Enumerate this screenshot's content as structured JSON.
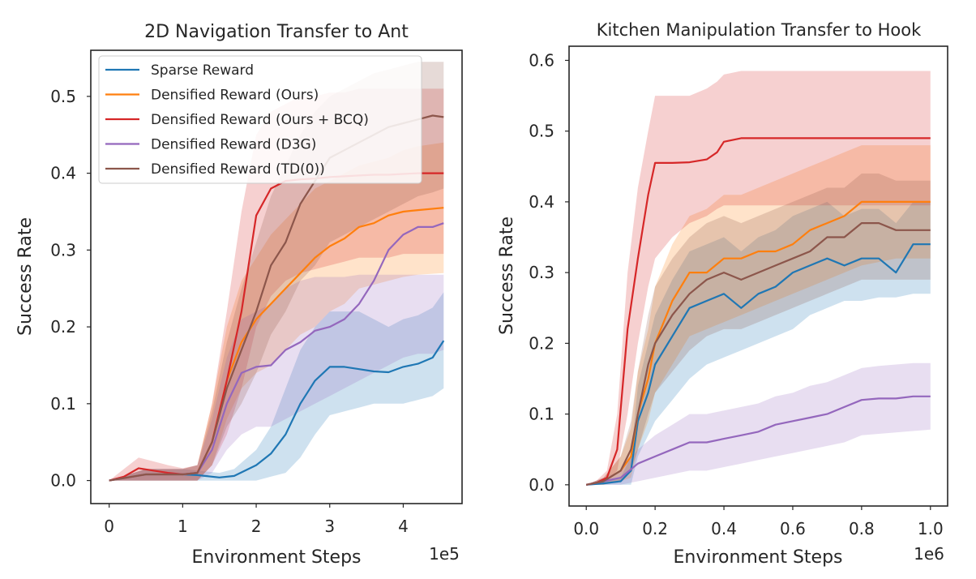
{
  "colors": {
    "Sparse Reward": "#1f77b4",
    "Densified Reward (Ours)": "#ff7f0e",
    "Densified Reward (Ours + BCQ)": "#d62728",
    "Densified Reward (D3G)": "#9467bd",
    "Densified Reward (TD(0))": "#8c564b"
  },
  "legend": {
    "placement": "upper-left of left panel",
    "entries": [
      "Sparse Reward",
      "Densified Reward (Ours)",
      "Densified Reward (Ours + BCQ)",
      "Densified Reward (D3G)",
      "Densified Reward (TD(0))"
    ]
  },
  "chart_data": [
    {
      "type": "line",
      "title": "2D Navigation Transfer to Ant",
      "xlabel": "Environment Steps",
      "ylabel": "Success Rate",
      "x_offset_label": "1e5",
      "xlim": [
        -0.25,
        4.8
      ],
      "ylim": [
        -0.03,
        0.56
      ],
      "xticks": [
        0,
        1,
        2,
        3,
        4
      ],
      "xtick_labels": [
        "0",
        "1",
        "2",
        "3",
        "4"
      ],
      "yticks": [
        0.0,
        0.1,
        0.2,
        0.3,
        0.4,
        0.5
      ],
      "ytick_labels": [
        "0.0",
        "0.1",
        "0.2",
        "0.3",
        "0.4",
        "0.5"
      ],
      "grid": false,
      "shaded_band": "variability band around each series",
      "series": [
        {
          "name": "Sparse Reward",
          "x": [
            0,
            0.5,
            1.0,
            1.2,
            1.5,
            1.7,
            2.0,
            2.2,
            2.4,
            2.6,
            2.8,
            3.0,
            3.2,
            3.4,
            3.6,
            3.8,
            4.0,
            4.2,
            4.4,
            4.55
          ],
          "y": [
            0.0,
            0.008,
            0.008,
            0.007,
            0.004,
            0.006,
            0.02,
            0.035,
            0.06,
            0.1,
            0.13,
            0.148,
            0.148,
            0.145,
            0.142,
            0.141,
            0.148,
            0.152,
            0.16,
            0.182
          ],
          "lower": [
            0.0,
            0.0,
            0.0,
            0.0,
            0.0,
            0.0,
            0.0,
            0.005,
            0.01,
            0.03,
            0.06,
            0.085,
            0.09,
            0.095,
            0.1,
            0.1,
            0.1,
            0.105,
            0.11,
            0.12
          ],
          "upper": [
            0.0,
            0.015,
            0.015,
            0.013,
            0.01,
            0.015,
            0.04,
            0.07,
            0.12,
            0.17,
            0.2,
            0.22,
            0.22,
            0.22,
            0.21,
            0.2,
            0.21,
            0.215,
            0.225,
            0.245
          ]
        },
        {
          "name": "Densified Reward (Ours)",
          "x": [
            0,
            0.5,
            1.0,
            1.2,
            1.4,
            1.6,
            1.8,
            2.0,
            2.2,
            2.4,
            2.6,
            2.8,
            3.0,
            3.2,
            3.4,
            3.6,
            3.8,
            4.0,
            4.2,
            4.55
          ],
          "y": [
            0.0,
            0.008,
            0.008,
            0.01,
            0.05,
            0.13,
            0.18,
            0.21,
            0.23,
            0.25,
            0.27,
            0.29,
            0.305,
            0.315,
            0.33,
            0.335,
            0.345,
            0.35,
            0.352,
            0.355
          ],
          "lower": [
            0.0,
            0.0,
            0.0,
            0.0,
            0.02,
            0.08,
            0.12,
            0.14,
            0.15,
            0.17,
            0.19,
            0.2,
            0.22,
            0.23,
            0.25,
            0.255,
            0.26,
            0.265,
            0.268,
            0.27
          ],
          "upper": [
            0.0,
            0.015,
            0.015,
            0.02,
            0.1,
            0.2,
            0.26,
            0.29,
            0.32,
            0.34,
            0.36,
            0.38,
            0.39,
            0.4,
            0.41,
            0.415,
            0.42,
            0.43,
            0.435,
            0.44
          ]
        },
        {
          "name": "Densified Reward (Ours + BCQ)",
          "x": [
            0,
            0.2,
            0.4,
            0.6,
            0.8,
            1.0,
            1.2,
            1.4,
            1.6,
            1.8,
            2.0,
            2.2,
            2.4,
            2.6,
            2.8,
            3.0,
            3.2,
            3.4,
            3.6,
            3.8,
            4.0,
            4.2,
            4.55
          ],
          "y": [
            0.0,
            0.005,
            0.016,
            0.013,
            0.01,
            0.008,
            0.01,
            0.05,
            0.13,
            0.22,
            0.345,
            0.38,
            0.39,
            0.392,
            0.393,
            0.395,
            0.396,
            0.397,
            0.398,
            0.398,
            0.399,
            0.4,
            0.4
          ],
          "lower": [
            0.0,
            0.0,
            0.0,
            0.0,
            0.0,
            0.0,
            0.0,
            0.02,
            0.06,
            0.12,
            0.2,
            0.24,
            0.26,
            0.27,
            0.275,
            0.28,
            0.285,
            0.29,
            0.29,
            0.29,
            0.295,
            0.295,
            0.295
          ],
          "upper": [
            0.0,
            0.015,
            0.03,
            0.025,
            0.02,
            0.016,
            0.02,
            0.1,
            0.22,
            0.35,
            0.45,
            0.48,
            0.49,
            0.5,
            0.5,
            0.505,
            0.505,
            0.51,
            0.51,
            0.51,
            0.51,
            0.51,
            0.51
          ]
        },
        {
          "name": "Densified Reward (D3G)",
          "x": [
            0,
            0.5,
            1.0,
            1.2,
            1.4,
            1.6,
            1.8,
            2.0,
            2.2,
            2.4,
            2.6,
            2.8,
            3.0,
            3.2,
            3.4,
            3.6,
            3.8,
            4.0,
            4.2,
            4.4,
            4.55
          ],
          "y": [
            0.0,
            0.008,
            0.008,
            0.01,
            0.04,
            0.1,
            0.14,
            0.148,
            0.15,
            0.17,
            0.18,
            0.195,
            0.2,
            0.21,
            0.23,
            0.26,
            0.3,
            0.32,
            0.33,
            0.33,
            0.335
          ],
          "lower": [
            0.0,
            0.0,
            0.0,
            0.0,
            0.01,
            0.04,
            0.06,
            0.07,
            0.07,
            0.08,
            0.09,
            0.1,
            0.11,
            0.12,
            0.13,
            0.14,
            0.15,
            0.16,
            0.165,
            0.165,
            0.17
          ],
          "upper": [
            0.0,
            0.015,
            0.015,
            0.02,
            0.08,
            0.16,
            0.21,
            0.22,
            0.23,
            0.25,
            0.26,
            0.265,
            0.265,
            0.265,
            0.268,
            0.268,
            0.268,
            0.268,
            0.268,
            0.268,
            0.268
          ]
        },
        {
          "name": "Densified Reward (TD(0))",
          "x": [
            0,
            0.5,
            1.0,
            1.2,
            1.4,
            1.6,
            1.8,
            2.0,
            2.2,
            2.4,
            2.6,
            2.8,
            3.0,
            3.2,
            3.4,
            3.6,
            3.8,
            4.0,
            4.2,
            4.4,
            4.55
          ],
          "y": [
            0.0,
            0.008,
            0.008,
            0.01,
            0.05,
            0.12,
            0.17,
            0.22,
            0.28,
            0.31,
            0.36,
            0.39,
            0.42,
            0.43,
            0.44,
            0.45,
            0.46,
            0.465,
            0.47,
            0.475,
            0.473
          ],
          "lower": [
            0.0,
            0.0,
            0.0,
            0.0,
            0.02,
            0.07,
            0.1,
            0.14,
            0.19,
            0.22,
            0.26,
            0.28,
            0.31,
            0.32,
            0.33,
            0.34,
            0.35,
            0.36,
            0.37,
            0.375,
            0.38
          ],
          "upper": [
            0.0,
            0.015,
            0.015,
            0.02,
            0.09,
            0.18,
            0.25,
            0.31,
            0.37,
            0.41,
            0.45,
            0.48,
            0.5,
            0.51,
            0.52,
            0.53,
            0.535,
            0.54,
            0.545,
            0.545,
            0.545
          ]
        }
      ]
    },
    {
      "type": "line",
      "title": "Kitchen Manipulation Transfer to Hook",
      "xlabel": "Environment Steps",
      "ylabel": "Success Rate",
      "x_offset_label": "1e6",
      "xlim": [
        -0.05,
        1.05
      ],
      "ylim": [
        -0.03,
        0.62
      ],
      "xticks": [
        0.0,
        0.2,
        0.4,
        0.6,
        0.8,
        1.0
      ],
      "xtick_labels": [
        "0.0",
        "0.2",
        "0.4",
        "0.6",
        "0.8",
        "1.0"
      ],
      "yticks": [
        0.0,
        0.1,
        0.2,
        0.3,
        0.4,
        0.5,
        0.6
      ],
      "ytick_labels": [
        "0.0",
        "0.1",
        "0.2",
        "0.3",
        "0.4",
        "0.5",
        "0.6"
      ],
      "grid": false,
      "series": [
        {
          "name": "Sparse Reward",
          "x": [
            0,
            0.05,
            0.1,
            0.13,
            0.15,
            0.18,
            0.2,
            0.25,
            0.3,
            0.35,
            0.4,
            0.45,
            0.5,
            0.55,
            0.6,
            0.65,
            0.7,
            0.75,
            0.8,
            0.85,
            0.9,
            0.95,
            1.0
          ],
          "y": [
            0.0,
            0.002,
            0.005,
            0.02,
            0.09,
            0.13,
            0.17,
            0.21,
            0.25,
            0.26,
            0.27,
            0.25,
            0.27,
            0.28,
            0.3,
            0.31,
            0.32,
            0.31,
            0.32,
            0.32,
            0.3,
            0.34,
            0.34
          ],
          "lower": [
            0.0,
            0.0,
            0.0,
            0.0,
            0.04,
            0.07,
            0.09,
            0.12,
            0.15,
            0.17,
            0.18,
            0.19,
            0.2,
            0.21,
            0.22,
            0.24,
            0.25,
            0.26,
            0.26,
            0.265,
            0.265,
            0.27,
            0.27
          ],
          "upper": [
            0.0,
            0.005,
            0.01,
            0.04,
            0.14,
            0.2,
            0.24,
            0.29,
            0.33,
            0.34,
            0.35,
            0.33,
            0.35,
            0.36,
            0.38,
            0.39,
            0.4,
            0.38,
            0.39,
            0.39,
            0.37,
            0.4,
            0.4
          ]
        },
        {
          "name": "Densified Reward (Ours)",
          "x": [
            0,
            0.05,
            0.1,
            0.13,
            0.15,
            0.18,
            0.2,
            0.25,
            0.3,
            0.35,
            0.4,
            0.45,
            0.5,
            0.55,
            0.6,
            0.65,
            0.7,
            0.75,
            0.8,
            0.85,
            0.9,
            0.95,
            1.0
          ],
          "y": [
            0.0,
            0.005,
            0.02,
            0.04,
            0.1,
            0.15,
            0.2,
            0.26,
            0.3,
            0.3,
            0.32,
            0.32,
            0.33,
            0.33,
            0.34,
            0.36,
            0.37,
            0.38,
            0.4,
            0.4,
            0.4,
            0.4,
            0.4
          ],
          "lower": [
            0.0,
            0.0,
            0.005,
            0.01,
            0.05,
            0.09,
            0.13,
            0.17,
            0.21,
            0.22,
            0.23,
            0.24,
            0.25,
            0.26,
            0.27,
            0.28,
            0.29,
            0.3,
            0.31,
            0.315,
            0.32,
            0.32,
            0.32
          ],
          "upper": [
            0.0,
            0.01,
            0.04,
            0.08,
            0.16,
            0.22,
            0.28,
            0.34,
            0.38,
            0.39,
            0.41,
            0.41,
            0.42,
            0.43,
            0.44,
            0.45,
            0.46,
            0.47,
            0.48,
            0.48,
            0.48,
            0.48,
            0.48
          ]
        },
        {
          "name": "Densified Reward (Ours + BCQ)",
          "x": [
            0,
            0.03,
            0.06,
            0.09,
            0.12,
            0.15,
            0.18,
            0.2,
            0.25,
            0.3,
            0.35,
            0.38,
            0.4,
            0.45,
            0.5,
            0.6,
            0.7,
            0.8,
            0.9,
            1.0
          ],
          "y": [
            0.0,
            0.003,
            0.01,
            0.05,
            0.22,
            0.32,
            0.41,
            0.455,
            0.455,
            0.456,
            0.46,
            0.47,
            0.485,
            0.49,
            0.49,
            0.49,
            0.49,
            0.49,
            0.49,
            0.49
          ],
          "lower": [
            0.0,
            0.0,
            0.005,
            0.02,
            0.1,
            0.2,
            0.28,
            0.32,
            0.35,
            0.37,
            0.38,
            0.39,
            0.395,
            0.395,
            0.395,
            0.395,
            0.395,
            0.395,
            0.395,
            0.395
          ],
          "upper": [
            0.0,
            0.006,
            0.02,
            0.1,
            0.3,
            0.42,
            0.5,
            0.55,
            0.55,
            0.55,
            0.56,
            0.57,
            0.58,
            0.585,
            0.585,
            0.585,
            0.585,
            0.585,
            0.585,
            0.585
          ]
        },
        {
          "name": "Densified Reward (D3G)",
          "x": [
            0,
            0.05,
            0.1,
            0.15,
            0.2,
            0.25,
            0.3,
            0.35,
            0.4,
            0.45,
            0.5,
            0.55,
            0.6,
            0.65,
            0.7,
            0.75,
            0.8,
            0.85,
            0.9,
            0.95,
            1.0
          ],
          "y": [
            0.0,
            0.005,
            0.01,
            0.03,
            0.04,
            0.05,
            0.06,
            0.06,
            0.065,
            0.07,
            0.075,
            0.085,
            0.09,
            0.095,
            0.1,
            0.11,
            0.12,
            0.122,
            0.122,
            0.125,
            0.125
          ],
          "lower": [
            0.0,
            0.0,
            0.0,
            0.005,
            0.01,
            0.015,
            0.02,
            0.02,
            0.025,
            0.03,
            0.035,
            0.04,
            0.045,
            0.05,
            0.055,
            0.06,
            0.07,
            0.072,
            0.074,
            0.076,
            0.078
          ],
          "upper": [
            0.0,
            0.01,
            0.02,
            0.05,
            0.07,
            0.085,
            0.1,
            0.1,
            0.105,
            0.11,
            0.115,
            0.125,
            0.13,
            0.14,
            0.145,
            0.155,
            0.165,
            0.168,
            0.17,
            0.172,
            0.172
          ]
        },
        {
          "name": "Densified Reward (TD(0))",
          "x": [
            0,
            0.05,
            0.1,
            0.13,
            0.15,
            0.18,
            0.2,
            0.25,
            0.3,
            0.35,
            0.4,
            0.45,
            0.5,
            0.55,
            0.6,
            0.65,
            0.7,
            0.75,
            0.8,
            0.85,
            0.9,
            0.95,
            1.0
          ],
          "y": [
            0.0,
            0.005,
            0.02,
            0.05,
            0.1,
            0.17,
            0.2,
            0.24,
            0.27,
            0.29,
            0.3,
            0.29,
            0.3,
            0.31,
            0.32,
            0.33,
            0.35,
            0.35,
            0.37,
            0.37,
            0.36,
            0.36,
            0.36
          ],
          "lower": [
            0.0,
            0.0,
            0.005,
            0.02,
            0.05,
            0.1,
            0.13,
            0.16,
            0.19,
            0.21,
            0.22,
            0.22,
            0.23,
            0.24,
            0.25,
            0.26,
            0.27,
            0.28,
            0.29,
            0.29,
            0.29,
            0.29,
            0.29
          ],
          "upper": [
            0.0,
            0.01,
            0.04,
            0.09,
            0.16,
            0.24,
            0.28,
            0.32,
            0.35,
            0.37,
            0.38,
            0.37,
            0.38,
            0.39,
            0.4,
            0.41,
            0.42,
            0.42,
            0.44,
            0.44,
            0.43,
            0.43,
            0.43
          ]
        }
      ]
    }
  ]
}
